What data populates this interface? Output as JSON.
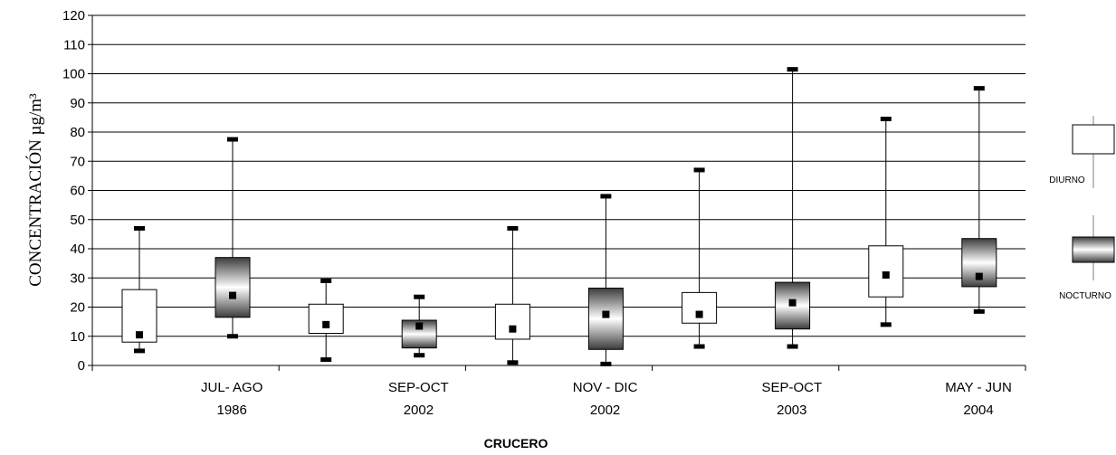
{
  "chart_data": {
    "type": "box",
    "ylabel": "CONCENTRACIÓN µg/m³",
    "xlabel": "CRUCERO",
    "ylim": [
      0,
      120
    ],
    "ytick_step": 10,
    "grid": true,
    "legend": "right",
    "categories": [
      {
        "line1": "JUL- AGO",
        "line2": "1986"
      },
      {
        "line1": "SEP-OCT",
        "line2": "2002"
      },
      {
        "line1": "NOV - DIC",
        "line2": "2002"
      },
      {
        "line1": "SEP-OCT",
        "line2": "2003"
      },
      {
        "line1": "MAY - JUN",
        "line2": "2004"
      }
    ],
    "series": [
      {
        "name": "DIURNO",
        "style": "plain",
        "boxes": [
          {
            "min": 5,
            "q1": 8,
            "median": 10.5,
            "q3": 26,
            "max": 47
          },
          {
            "min": 2,
            "q1": 11,
            "median": 14,
            "q3": 21,
            "max": 29
          },
          {
            "min": 1,
            "q1": 9,
            "median": 12.5,
            "q3": 21,
            "max": 47
          },
          {
            "min": 6.5,
            "q1": 14.5,
            "median": 17.5,
            "q3": 25,
            "max": 67
          },
          {
            "min": 14,
            "q1": 23.5,
            "median": 31,
            "q3": 41,
            "max": 84.5
          }
        ]
      },
      {
        "name": "NOCTURNO",
        "style": "gradient",
        "boxes": [
          {
            "min": 10,
            "q1": 16.5,
            "median": 24,
            "q3": 37,
            "max": 77.5
          },
          {
            "min": 3.5,
            "q1": 6,
            "median": 13.5,
            "q3": 15.5,
            "max": 23.5
          },
          {
            "min": 0.5,
            "q1": 5.5,
            "median": 17.5,
            "q3": 26.5,
            "max": 58
          },
          {
            "min": 6.5,
            "q1": 12.5,
            "median": 21.5,
            "q3": 28.5,
            "max": 101.5
          },
          {
            "min": 18.5,
            "q1": 27,
            "median": 30.5,
            "q3": 43.5,
            "max": 95
          }
        ]
      }
    ]
  },
  "colors": {
    "axis": "#000000",
    "grid": "#000000",
    "box_fill": "#ffffff",
    "gradient_dark": "#3c3c3c",
    "gradient_light": "#ffffff"
  }
}
